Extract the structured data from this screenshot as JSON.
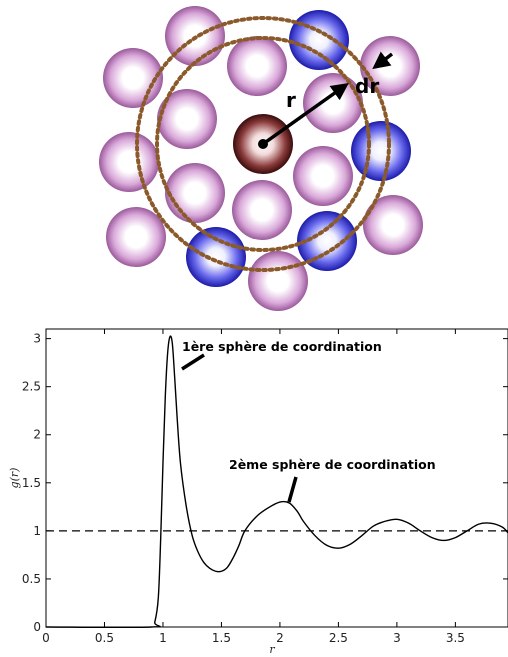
{
  "diagram": {
    "r_label": "r",
    "dr_label": "dr",
    "colors": {
      "ring": "#8b5a2b",
      "pink_particle": "#b36fb3",
      "blue_particle": "#3a3ad8",
      "center_particle": "#5a1e1e"
    },
    "particles": [
      {
        "type": "pink"
      },
      {
        "type": "blue"
      },
      {
        "type": "pink"
      },
      {
        "type": "pink"
      },
      {
        "type": "pink"
      },
      {
        "type": "pink"
      },
      {
        "type": "pink"
      },
      {
        "type": "blue"
      },
      {
        "type": "pink"
      },
      {
        "type": "pink"
      },
      {
        "type": "pink"
      },
      {
        "type": "pink"
      },
      {
        "type": "pink"
      },
      {
        "type": "blue"
      },
      {
        "type": "pink"
      },
      {
        "type": "blue"
      },
      {
        "type": "pink"
      }
    ]
  },
  "chart_data": {
    "type": "line",
    "xlabel": "r",
    "ylabel": "g(r)",
    "xlim": [
      0,
      3.95
    ],
    "ylim": [
      0,
      3.1
    ],
    "xticks": [
      "0",
      "0.5",
      "1",
      "1.5",
      "2",
      "2.5",
      "3",
      "3.5"
    ],
    "yticks": [
      "0",
      "0.5",
      "1",
      "1.5",
      "2",
      "2.5",
      "3"
    ],
    "reference_line": {
      "y": 1,
      "style": "dashed"
    },
    "series": [
      {
        "x": [
          0,
          0.9,
          0.93,
          0.96,
          0.98,
          1.0,
          1.02,
          1.04,
          1.06,
          1.08,
          1.1,
          1.12,
          1.15,
          1.2,
          1.25,
          1.3,
          1.35,
          1.4,
          1.45,
          1.5,
          1.55,
          1.6,
          1.65,
          1.7,
          1.8,
          1.9,
          2.0,
          2.08,
          2.15,
          2.2,
          2.3,
          2.4,
          2.5,
          2.6,
          2.7,
          2.8,
          2.9,
          3.0,
          3.1,
          3.2,
          3.3,
          3.4,
          3.5,
          3.6,
          3.7,
          3.8,
          3.9,
          3.95
        ],
        "y": [
          0,
          0,
          0.05,
          0.3,
          0.9,
          1.7,
          2.4,
          2.85,
          3.02,
          2.95,
          2.6,
          2.2,
          1.7,
          1.25,
          0.95,
          0.78,
          0.67,
          0.61,
          0.58,
          0.58,
          0.62,
          0.72,
          0.85,
          1.0,
          1.15,
          1.24,
          1.3,
          1.29,
          1.2,
          1.1,
          0.95,
          0.85,
          0.82,
          0.86,
          0.95,
          1.05,
          1.1,
          1.12,
          1.08,
          1.0,
          0.93,
          0.9,
          0.93,
          1.0,
          1.07,
          1.08,
          1.04,
          0.98
        ]
      }
    ],
    "annotations": [
      {
        "text": "1ère sphère de coordination"
      },
      {
        "text": "2ème sphère de coordination"
      }
    ]
  }
}
